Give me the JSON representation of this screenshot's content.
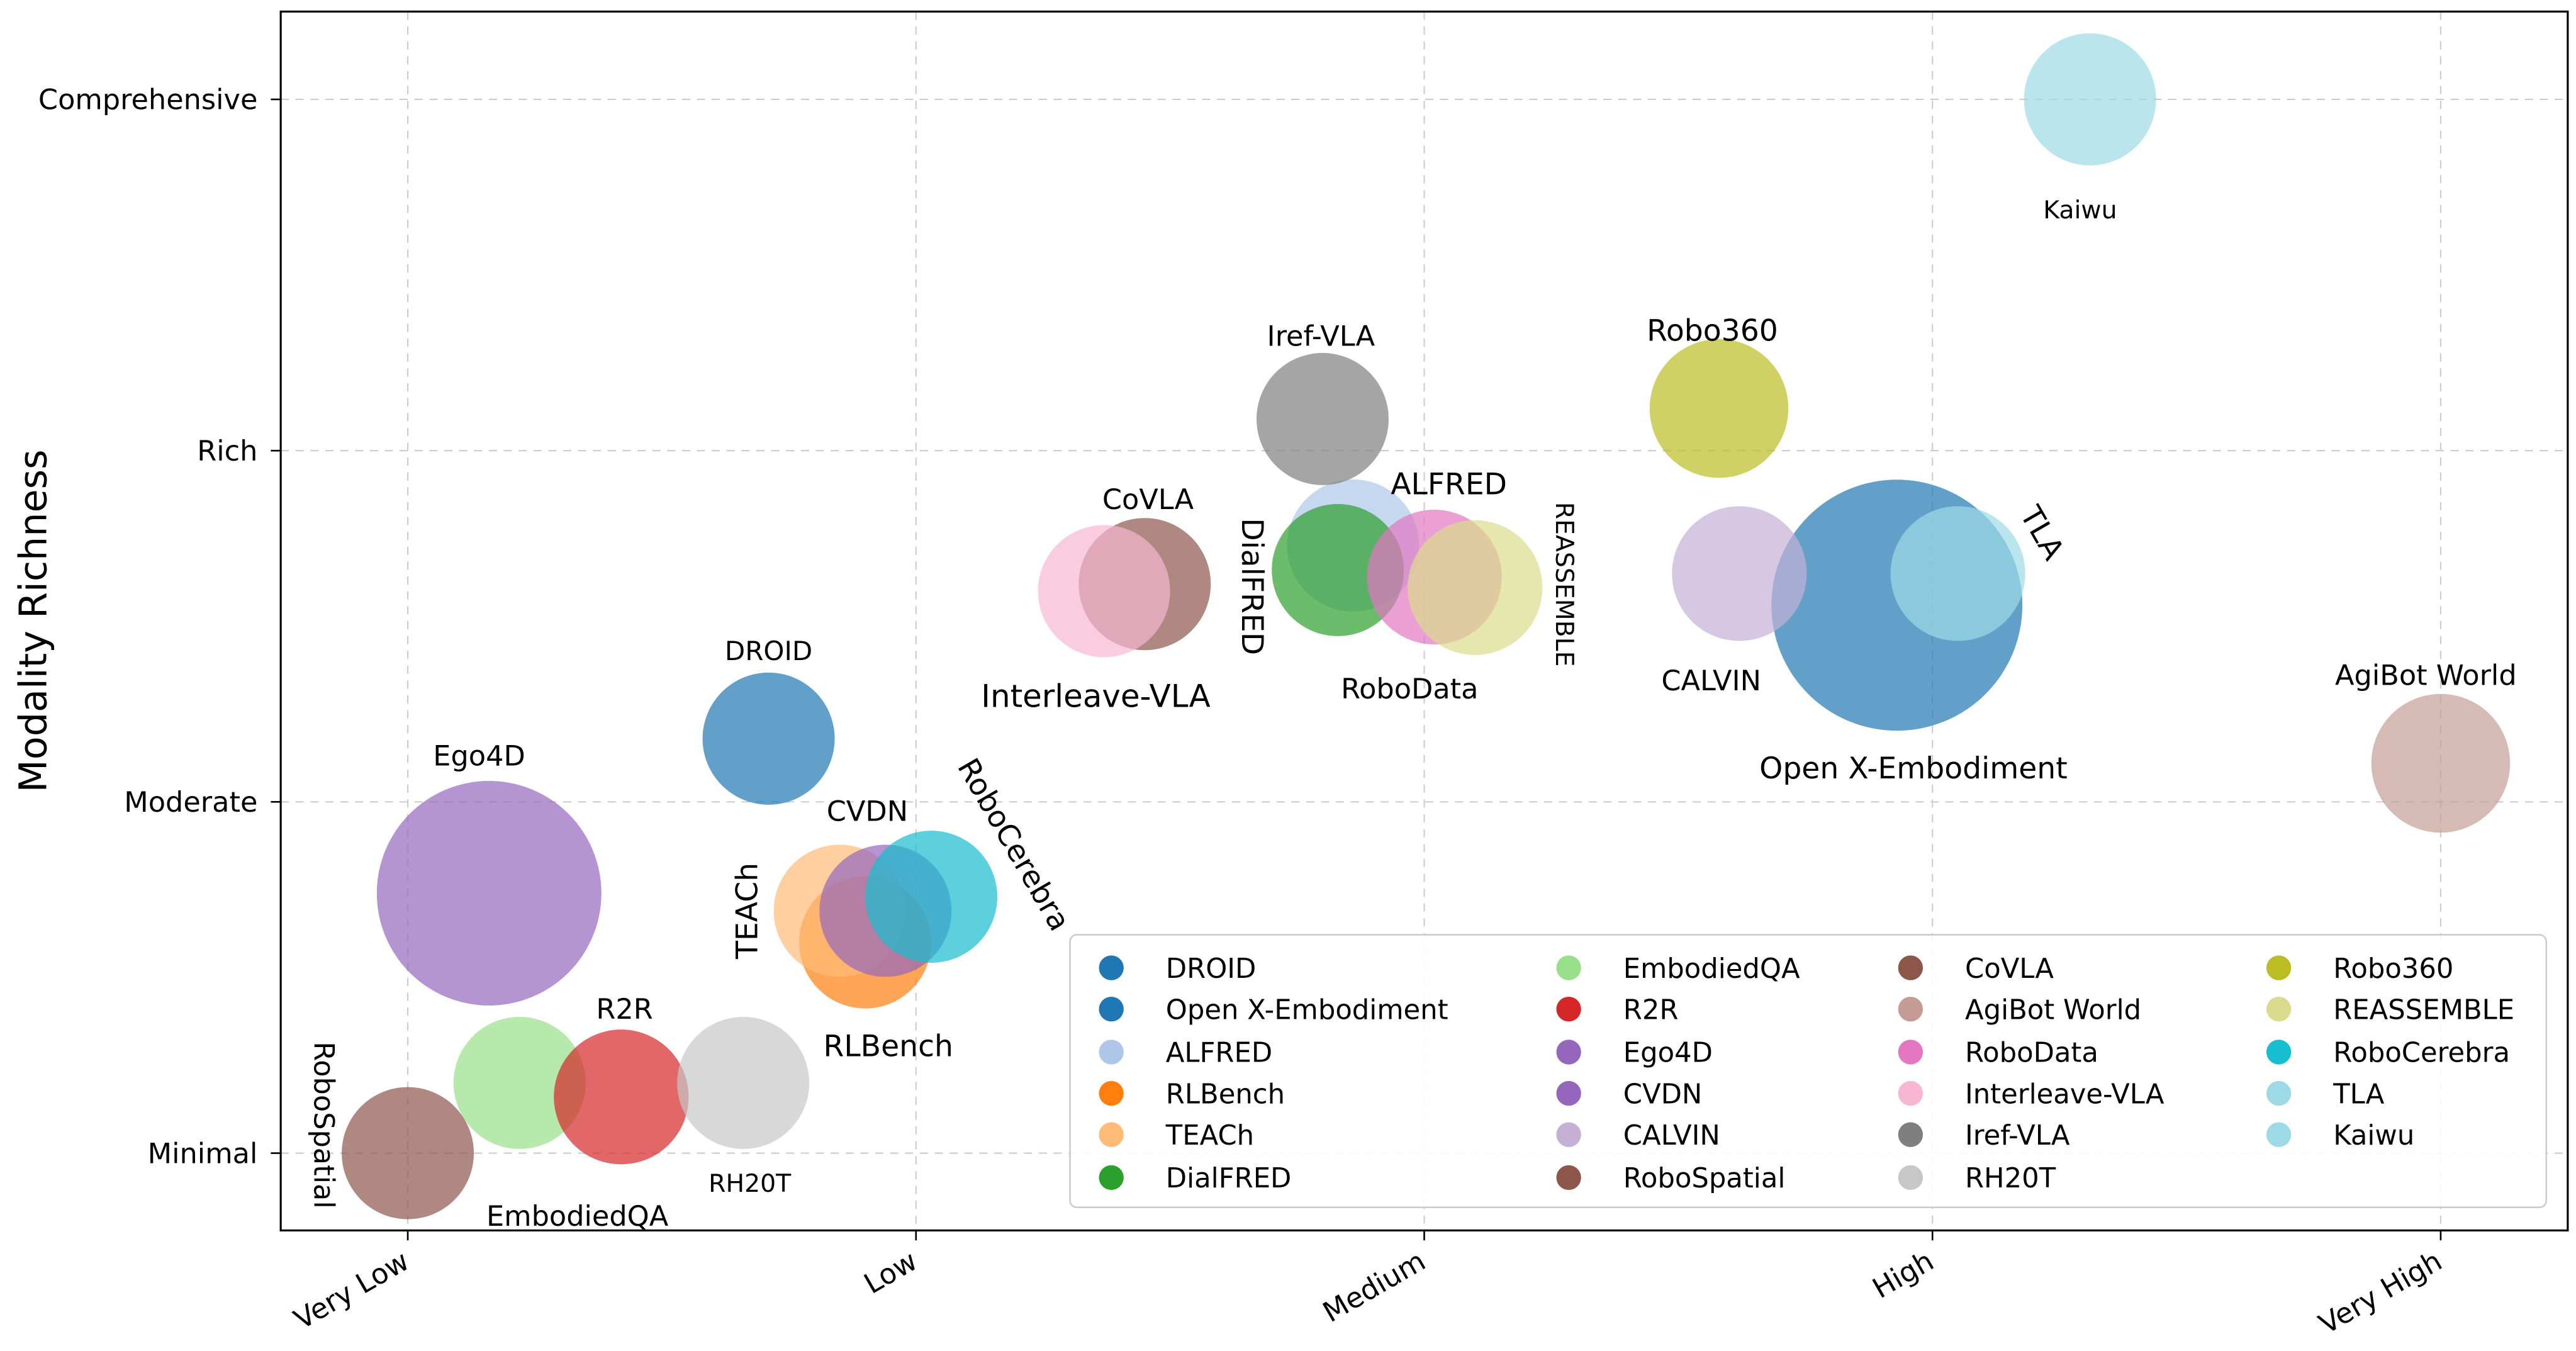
{
  "chart_data": {
    "type": "scatter",
    "variant": "bubble",
    "title": "",
    "xlabel": "",
    "ylabel": "Modality Richness",
    "x_ticks": [
      {
        "value": 1,
        "label": "Very Low"
      },
      {
        "value": 2,
        "label": "Low"
      },
      {
        "value": 3,
        "label": "Medium"
      },
      {
        "value": 4,
        "label": "High"
      },
      {
        "value": 5,
        "label": "Very High"
      }
    ],
    "y_ticks": [
      {
        "value": 1,
        "label": "Minimal"
      },
      {
        "value": 2,
        "label": "Moderate"
      },
      {
        "value": 3,
        "label": "Rich"
      },
      {
        "value": 4,
        "label": "Comprehensive"
      }
    ],
    "xlim": [
      0.75,
      5.25
    ],
    "ylim": [
      0.78,
      4.25
    ],
    "grid": true,
    "legend_placement": "lower-right",
    "marker_alpha": 0.7,
    "points": [
      {
        "name": "DROID",
        "x": 1.71,
        "y": 2.18,
        "size": 1.0,
        "color": "#1f77b4"
      },
      {
        "name": "Open X-Embodiment",
        "x": 3.93,
        "y": 2.56,
        "size": 1.9,
        "color": "#1f77b4"
      },
      {
        "name": "ALFRED",
        "x": 2.86,
        "y": 2.73,
        "size": 1.0,
        "color": "#aec7e8"
      },
      {
        "name": "RLBench",
        "x": 1.9,
        "y": 1.6,
        "size": 1.0,
        "color": "#ff7f0e"
      },
      {
        "name": "TEACh",
        "x": 1.85,
        "y": 1.69,
        "size": 1.0,
        "color": "#ffbb78"
      },
      {
        "name": "DialFRED",
        "x": 2.83,
        "y": 2.66,
        "size": 1.0,
        "color": "#2ca02c"
      },
      {
        "name": "EmbodiedQA",
        "x": 1.22,
        "y": 1.2,
        "size": 1.0,
        "color": "#98df8a"
      },
      {
        "name": "R2R",
        "x": 1.42,
        "y": 1.16,
        "size": 1.02,
        "color": "#d62728"
      },
      {
        "name": "Ego4D",
        "x": 1.16,
        "y": 1.74,
        "size": 1.7,
        "color": "#9467bd"
      },
      {
        "name": "CVDN",
        "x": 1.94,
        "y": 1.69,
        "size": 1.0,
        "color": "#9467bd"
      },
      {
        "name": "CALVIN",
        "x": 3.62,
        "y": 2.65,
        "size": 1.02,
        "color": "#c5b0d5"
      },
      {
        "name": "RoboSpatial",
        "x": 1.0,
        "y": 1.0,
        "size": 1.0,
        "color": "#8c564b"
      },
      {
        "name": "CoVLA",
        "x": 2.45,
        "y": 2.62,
        "size": 1.0,
        "color": "#8c564b"
      },
      {
        "name": "AgiBot World",
        "x": 5.0,
        "y": 2.11,
        "size": 1.05,
        "color": "#c49c94"
      },
      {
        "name": "RoboData",
        "x": 3.02,
        "y": 2.64,
        "size": 1.02,
        "color": "#e377c2"
      },
      {
        "name": "Interleave-VLA",
        "x": 2.37,
        "y": 2.6,
        "size": 1.0,
        "color": "#f7b6d2"
      },
      {
        "name": "Iref-VLA",
        "x": 2.8,
        "y": 3.09,
        "size": 1.0,
        "color": "#7f7f7f"
      },
      {
        "name": "RH20T",
        "x": 1.66,
        "y": 1.2,
        "size": 1.0,
        "color": "#c7c7c7"
      },
      {
        "name": "Robo360",
        "x": 3.58,
        "y": 3.12,
        "size": 1.05,
        "color": "#bcbd22"
      },
      {
        "name": "REASSEMBLE",
        "x": 3.1,
        "y": 2.61,
        "size": 1.02,
        "color": "#dbdb8d"
      },
      {
        "name": "RoboCerebra",
        "x": 2.03,
        "y": 1.73,
        "size": 1.0,
        "color": "#17becf"
      },
      {
        "name": "TLA",
        "x": 4.05,
        "y": 2.65,
        "size": 1.02,
        "color": "#9edae5"
      },
      {
        "name": "Kaiwu",
        "x": 4.31,
        "y": 4.0,
        "size": 1.0,
        "color": "#9edae5"
      }
    ]
  }
}
